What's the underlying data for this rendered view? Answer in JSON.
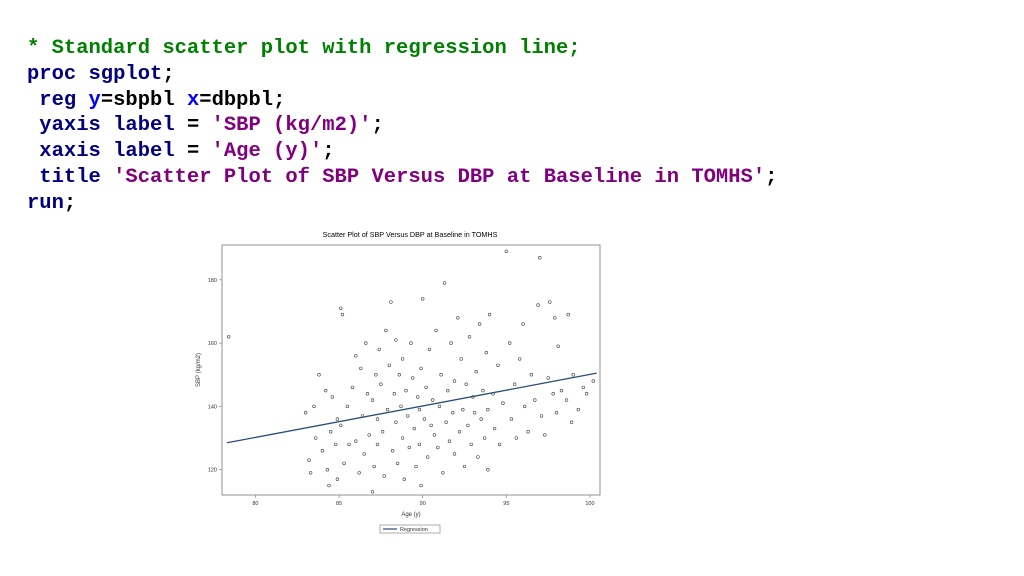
{
  "colors": {
    "comment": "#008000",
    "keyword": "#000080",
    "option": "#0000ff",
    "plain": "#000000",
    "string": "#800080",
    "regression": "#2a4e7a",
    "marker": "#333333"
  },
  "code": {
    "lines": [
      [
        {
          "text": "* Standard scatter plot with regression line;",
          "style": "comment"
        }
      ],
      [
        {
          "text": "proc sgplot",
          "style": "keyword"
        },
        {
          "text": ";",
          "style": "plain"
        }
      ],
      [
        {
          "text": " reg ",
          "style": "keyword"
        },
        {
          "text": "y",
          "style": "option"
        },
        {
          "text": "=sbpbl ",
          "style": "plain"
        },
        {
          "text": "x",
          "style": "option"
        },
        {
          "text": "=dbpbl;",
          "style": "plain"
        }
      ],
      [
        {
          "text": " yaxis label ",
          "style": "keyword"
        },
        {
          "text": "= ",
          "style": "plain"
        },
        {
          "text": "'SBP (kg/m2)'",
          "style": "string"
        },
        {
          "text": ";",
          "style": "plain"
        }
      ],
      [
        {
          "text": " xaxis label ",
          "style": "keyword"
        },
        {
          "text": "= ",
          "style": "plain"
        },
        {
          "text": "'Age (y)'",
          "style": "string"
        },
        {
          "text": ";",
          "style": "plain"
        }
      ],
      [
        {
          "text": " title ",
          "style": "keyword"
        },
        {
          "text": "'Scatter Plot of SBP Versus DBP at Baseline in TOMHS'",
          "style": "string"
        },
        {
          "text": ";",
          "style": "plain"
        }
      ],
      [
        {
          "text": "run",
          "style": "keyword"
        },
        {
          "text": ";",
          "style": "plain"
        }
      ]
    ]
  },
  "chart_data": {
    "type": "scatter",
    "title": "Scatter Plot of SBP Versus DBP at Baseline in TOMHS",
    "xlabel": "Age (y)",
    "ylabel": "SBP (kg/m2)",
    "xlim": [
      78,
      100.6
    ],
    "ylim": [
      112,
      191
    ],
    "xticks": [
      "80",
      "85",
      "90",
      "95",
      "100"
    ],
    "yticks": [
      "120",
      "140",
      "160",
      "180"
    ],
    "grid": false,
    "legend": {
      "entries": [
        "Regression"
      ],
      "placement": "bottom-center"
    },
    "regression": {
      "x": [
        78.3,
        100.4
      ],
      "y": [
        128.5,
        150.5
      ]
    },
    "series": [
      {
        "name": "",
        "points": [
          [
            78.4,
            162
          ],
          [
            83,
            138
          ],
          [
            83.2,
            123
          ],
          [
            83.3,
            119
          ],
          [
            83.5,
            140
          ],
          [
            83.6,
            130
          ],
          [
            83.8,
            150
          ],
          [
            84,
            126
          ],
          [
            84.2,
            145
          ],
          [
            84.3,
            120
          ],
          [
            84.4,
            115
          ],
          [
            84.5,
            132
          ],
          [
            84.6,
            143
          ],
          [
            84.8,
            128
          ],
          [
            84.9,
            136
          ],
          [
            84.9,
            117
          ],
          [
            85.1,
            171
          ],
          [
            85.2,
            169
          ],
          [
            85.1,
            134
          ],
          [
            85.3,
            122
          ],
          [
            85.5,
            140
          ],
          [
            85.6,
            128
          ],
          [
            85.8,
            146
          ],
          [
            86,
            156
          ],
          [
            86,
            129
          ],
          [
            86.2,
            119
          ],
          [
            86.3,
            152
          ],
          [
            86.4,
            137
          ],
          [
            86.5,
            125
          ],
          [
            86.6,
            160
          ],
          [
            86.7,
            144
          ],
          [
            86.8,
            131
          ],
          [
            87,
            113
          ],
          [
            87,
            142
          ],
          [
            87.1,
            121
          ],
          [
            87.2,
            150
          ],
          [
            87.3,
            136
          ],
          [
            87.3,
            128
          ],
          [
            87.4,
            158
          ],
          [
            87.5,
            147
          ],
          [
            87.6,
            132
          ],
          [
            87.7,
            118
          ],
          [
            87.8,
            164
          ],
          [
            87.9,
            139
          ],
          [
            88.1,
            173
          ],
          [
            88,
            153
          ],
          [
            88.2,
            126
          ],
          [
            88.3,
            144
          ],
          [
            88.4,
            161
          ],
          [
            88.4,
            135
          ],
          [
            88.5,
            122
          ],
          [
            88.6,
            150
          ],
          [
            88.7,
            140
          ],
          [
            88.8,
            130
          ],
          [
            88.8,
            155
          ],
          [
            88.9,
            117
          ],
          [
            89,
            145
          ],
          [
            89.1,
            137
          ],
          [
            89.2,
            127
          ],
          [
            89.3,
            160
          ],
          [
            89.4,
            149
          ],
          [
            89.5,
            133
          ],
          [
            89.6,
            121
          ],
          [
            89.7,
            143
          ],
          [
            89.8,
            139
          ],
          [
            89.8,
            128
          ],
          [
            89.9,
            152
          ],
          [
            89.9,
            115
          ],
          [
            90,
            174
          ],
          [
            90.1,
            136
          ],
          [
            90.2,
            146
          ],
          [
            90.3,
            124
          ],
          [
            90.4,
            158
          ],
          [
            90.5,
            134
          ],
          [
            90.6,
            142
          ],
          [
            90.7,
            131
          ],
          [
            90.8,
            164
          ],
          [
            90.9,
            127
          ],
          [
            91,
            140
          ],
          [
            91.1,
            150
          ],
          [
            91.2,
            119
          ],
          [
            91.3,
            179
          ],
          [
            91.4,
            135
          ],
          [
            91.5,
            145
          ],
          [
            91.6,
            129
          ],
          [
            91.7,
            160
          ],
          [
            91.8,
            138
          ],
          [
            91.9,
            125
          ],
          [
            91.9,
            148
          ],
          [
            92.1,
            168
          ],
          [
            92.2,
            132
          ],
          [
            92.3,
            155
          ],
          [
            92.4,
            139
          ],
          [
            92.5,
            121
          ],
          [
            92.6,
            147
          ],
          [
            92.7,
            134
          ],
          [
            92.8,
            162
          ],
          [
            92.9,
            128
          ],
          [
            93,
            143
          ],
          [
            93.1,
            138
          ],
          [
            93.2,
            151
          ],
          [
            93.3,
            124
          ],
          [
            93.4,
            166
          ],
          [
            93.5,
            136
          ],
          [
            93.6,
            145
          ],
          [
            93.7,
            130
          ],
          [
            93.8,
            157
          ],
          [
            93.9,
            139
          ],
          [
            93.9,
            120
          ],
          [
            94,
            169
          ],
          [
            94.2,
            144
          ],
          [
            94.3,
            133
          ],
          [
            94.5,
            153
          ],
          [
            94.6,
            128
          ],
          [
            94.8,
            141
          ],
          [
            95,
            189
          ],
          [
            95.2,
            160
          ],
          [
            95.3,
            136
          ],
          [
            95.5,
            147
          ],
          [
            95.6,
            130
          ],
          [
            95.8,
            155
          ],
          [
            96,
            166
          ],
          [
            96.1,
            140
          ],
          [
            96.3,
            132
          ],
          [
            96.5,
            150
          ],
          [
            96.7,
            142
          ],
          [
            96.9,
            172
          ],
          [
            97,
            187
          ],
          [
            97.1,
            137
          ],
          [
            97.3,
            131
          ],
          [
            97.5,
            149
          ],
          [
            97.6,
            173
          ],
          [
            97.8,
            144
          ],
          [
            97.9,
            168
          ],
          [
            98,
            138
          ],
          [
            98.1,
            159
          ],
          [
            98.3,
            145
          ],
          [
            98.6,
            142
          ],
          [
            98.7,
            169
          ],
          [
            98.9,
            135
          ],
          [
            99,
            150
          ],
          [
            99.3,
            139
          ],
          [
            99.6,
            146
          ],
          [
            99.8,
            144
          ],
          [
            100.2,
            148
          ]
        ]
      }
    ]
  }
}
